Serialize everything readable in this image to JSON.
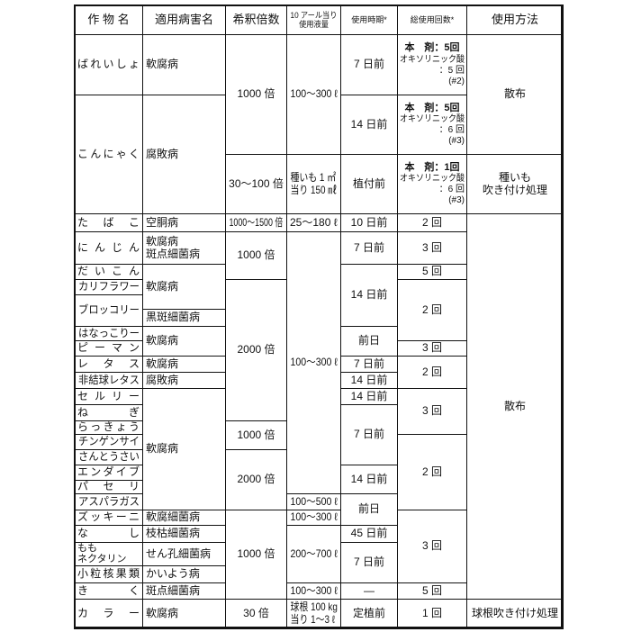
{
  "header": [
    "作 物 名",
    "適用病害名",
    "希釈倍数",
    "10 アール当り\n使用液量",
    "使用時期*",
    "総使用回数*",
    "使用方法"
  ],
  "columns": {
    "crop": [
      "ばれいしょ",
      "こんにゃく",
      "たばこ",
      "にんじん",
      "だいこん",
      "カリフラワー",
      "ブロッコリー",
      "はなっこりー",
      "ピーマン",
      "レタス",
      "非結球レタス",
      "セルリー",
      "ねぎ",
      "らっきょう",
      "チンゲンサイ",
      "さんとうさい",
      "エンダイブ",
      "パセリ",
      "アスパラガス",
      "ズッキーニ",
      "なし",
      "もも\nネクタリン",
      "小粒核果類",
      "きく",
      "カラー"
    ],
    "disease": [
      "軟腐病",
      "腐敗病",
      "空胴病",
      "軟腐病\n斑点細菌病",
      "軟腐病",
      "黒斑細菌病",
      "軟腐病",
      "軟腐病",
      "腐敗病",
      "軟腐病",
      "軟腐細菌病",
      "枝枯細菌病",
      "せん孔細菌病",
      "かいよう病",
      "斑点細菌病",
      "軟腐病"
    ],
    "dilution": [
      "1000 倍",
      "30～100 倍",
      "1000～1500 倍",
      "1000 倍",
      "2000 倍",
      "1000 倍",
      "2000 倍",
      "1000 倍",
      "30 倍"
    ],
    "volume": [
      "100～300 ℓ",
      "種いも 1 ㎡\n当り 150 ㎖",
      "25～180 ℓ",
      "100～300 ℓ",
      "100～500 ℓ",
      "100～300 ℓ",
      "200～700 ℓ",
      "100～300 ℓ",
      "球根 100 kg\n当り 1～3 ℓ"
    ],
    "timing": [
      "7 日前",
      "14 日前",
      "植付前",
      "10 日前",
      "7 日前",
      "14 日前",
      "前日",
      "7 日前",
      "14 日前",
      "14 日前",
      "7 日前",
      "14 日前",
      "前日",
      "45 日前",
      "7 日前",
      "—",
      "定植前"
    ],
    "count": [
      {
        "main": "本　剤：5回",
        "sub": "オキソリニック酸",
        "count": "：5 回",
        "note": "(#2)"
      },
      {
        "main": "本　剤：5回",
        "sub": "オキソリニック酸",
        "count": "：6 回",
        "note": "(#3)"
      },
      {
        "main": "本　剤：1回",
        "sub": "オキソリニック酸",
        "count": "：6 回",
        "note": "(#3)"
      },
      "2 回",
      "3 回",
      "5 回",
      "2 回",
      "3 回",
      "2 回",
      "3 回",
      "2 回",
      "3 回",
      "5 回",
      "1 回"
    ],
    "method": [
      "散布",
      "種いも\n吹き付け処理",
      "散布",
      "球根吹き付け処理"
    ]
  }
}
